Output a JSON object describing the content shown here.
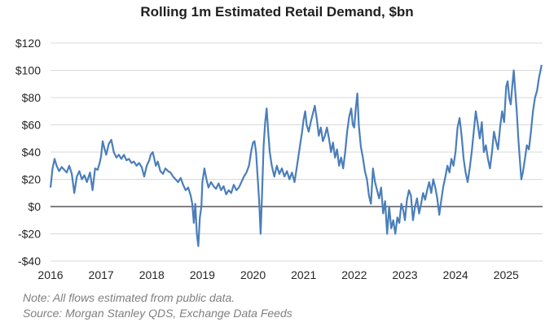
{
  "chart_data": {
    "type": "line",
    "title": "Rolling 1m Estimated Retail Demand, $bn",
    "xlabel": "",
    "ylabel": "",
    "ylim": [
      -40,
      120
    ],
    "xlim": [
      2016,
      2025.72
    ],
    "grid": "horizontal",
    "legend": "none",
    "y_ticks": [
      -40,
      -20,
      0,
      20,
      40,
      60,
      80,
      100,
      120
    ],
    "y_tick_labels": [
      "-$40",
      "-$20",
      "$0",
      "$20",
      "$40",
      "$60",
      "$80",
      "$100",
      "$120"
    ],
    "x_ticks": [
      2016,
      2017,
      2018,
      2019,
      2020,
      2021,
      2022,
      2023,
      2024,
      2025
    ],
    "x_tick_labels": [
      "2016",
      "2017",
      "2018",
      "2019",
      "2020",
      "2021",
      "2022",
      "2023",
      "2024",
      "2025"
    ],
    "series": [
      {
        "color": "#4a7ebb",
        "points": [
          [
            2016.0,
            14
          ],
          [
            2016.04,
            28
          ],
          [
            2016.08,
            35
          ],
          [
            2016.12,
            30
          ],
          [
            2016.17,
            26
          ],
          [
            2016.22,
            29
          ],
          [
            2016.27,
            27
          ],
          [
            2016.32,
            25
          ],
          [
            2016.37,
            30
          ],
          [
            2016.42,
            24
          ],
          [
            2016.47,
            10
          ],
          [
            2016.52,
            22
          ],
          [
            2016.57,
            26
          ],
          [
            2016.62,
            20
          ],
          [
            2016.67,
            23
          ],
          [
            2016.72,
            18
          ],
          [
            2016.78,
            25
          ],
          [
            2016.83,
            12
          ],
          [
            2016.88,
            28
          ],
          [
            2016.93,
            27
          ],
          [
            2016.97,
            32
          ],
          [
            2017.0,
            37
          ],
          [
            2017.03,
            48
          ],
          [
            2017.07,
            42
          ],
          [
            2017.1,
            38
          ],
          [
            2017.15,
            46
          ],
          [
            2017.2,
            49
          ],
          [
            2017.25,
            40
          ],
          [
            2017.3,
            36
          ],
          [
            2017.35,
            38
          ],
          [
            2017.4,
            35
          ],
          [
            2017.45,
            38
          ],
          [
            2017.5,
            34
          ],
          [
            2017.55,
            35
          ],
          [
            2017.6,
            32
          ],
          [
            2017.65,
            33
          ],
          [
            2017.7,
            30
          ],
          [
            2017.75,
            32
          ],
          [
            2017.8,
            29
          ],
          [
            2017.85,
            22
          ],
          [
            2017.9,
            30
          ],
          [
            2017.95,
            34
          ],
          [
            2017.98,
            38
          ],
          [
            2018.02,
            40
          ],
          [
            2018.05,
            35
          ],
          [
            2018.08,
            30
          ],
          [
            2018.12,
            33
          ],
          [
            2018.17,
            26
          ],
          [
            2018.22,
            24
          ],
          [
            2018.27,
            28
          ],
          [
            2018.32,
            26
          ],
          [
            2018.37,
            25
          ],
          [
            2018.42,
            22
          ],
          [
            2018.47,
            20
          ],
          [
            2018.52,
            18
          ],
          [
            2018.57,
            21
          ],
          [
            2018.62,
            16
          ],
          [
            2018.67,
            12
          ],
          [
            2018.72,
            14
          ],
          [
            2018.77,
            8
          ],
          [
            2018.8,
            2
          ],
          [
            2018.83,
            -12
          ],
          [
            2018.86,
            2
          ],
          [
            2018.89,
            -20
          ],
          [
            2018.92,
            -29
          ],
          [
            2018.95,
            -8
          ],
          [
            2018.98,
            0
          ],
          [
            2019.0,
            18
          ],
          [
            2019.04,
            28
          ],
          [
            2019.08,
            20
          ],
          [
            2019.12,
            14
          ],
          [
            2019.17,
            18
          ],
          [
            2019.22,
            15
          ],
          [
            2019.27,
            13
          ],
          [
            2019.32,
            17
          ],
          [
            2019.37,
            12
          ],
          [
            2019.42,
            15
          ],
          [
            2019.47,
            9
          ],
          [
            2019.52,
            12
          ],
          [
            2019.57,
            10
          ],
          [
            2019.62,
            16
          ],
          [
            2019.67,
            12
          ],
          [
            2019.72,
            14
          ],
          [
            2019.77,
            18
          ],
          [
            2019.82,
            22
          ],
          [
            2019.87,
            25
          ],
          [
            2019.92,
            30
          ],
          [
            2019.97,
            42
          ],
          [
            2020.0,
            47
          ],
          [
            2020.03,
            48
          ],
          [
            2020.06,
            40
          ],
          [
            2020.09,
            22
          ],
          [
            2020.12,
            5
          ],
          [
            2020.15,
            -20
          ],
          [
            2020.18,
            10
          ],
          [
            2020.21,
            45
          ],
          [
            2020.24,
            62
          ],
          [
            2020.27,
            72
          ],
          [
            2020.3,
            55
          ],
          [
            2020.33,
            40
          ],
          [
            2020.37,
            30
          ],
          [
            2020.42,
            22
          ],
          [
            2020.47,
            30
          ],
          [
            2020.52,
            24
          ],
          [
            2020.57,
            28
          ],
          [
            2020.62,
            22
          ],
          [
            2020.67,
            26
          ],
          [
            2020.72,
            20
          ],
          [
            2020.77,
            25
          ],
          [
            2020.82,
            18
          ],
          [
            2020.87,
            30
          ],
          [
            2020.93,
            45
          ],
          [
            2020.97,
            55
          ],
          [
            2021.0,
            64
          ],
          [
            2021.03,
            70
          ],
          [
            2021.06,
            60
          ],
          [
            2021.1,
            55
          ],
          [
            2021.14,
            62
          ],
          [
            2021.18,
            68
          ],
          [
            2021.22,
            74
          ],
          [
            2021.26,
            64
          ],
          [
            2021.3,
            52
          ],
          [
            2021.34,
            58
          ],
          [
            2021.38,
            48
          ],
          [
            2021.42,
            52
          ],
          [
            2021.46,
            58
          ],
          [
            2021.5,
            50
          ],
          [
            2021.54,
            40
          ],
          [
            2021.58,
            47
          ],
          [
            2021.62,
            36
          ],
          [
            2021.66,
            42
          ],
          [
            2021.7,
            30
          ],
          [
            2021.74,
            36
          ],
          [
            2021.78,
            28
          ],
          [
            2021.82,
            40
          ],
          [
            2021.86,
            55
          ],
          [
            2021.9,
            66
          ],
          [
            2021.94,
            72
          ],
          [
            2021.97,
            60
          ],
          [
            2022.0,
            58
          ],
          [
            2022.03,
            72
          ],
          [
            2022.06,
            83
          ],
          [
            2022.09,
            60
          ],
          [
            2022.13,
            44
          ],
          [
            2022.17,
            36
          ],
          [
            2022.21,
            26
          ],
          [
            2022.25,
            20
          ],
          [
            2022.29,
            8
          ],
          [
            2022.33,
            2
          ],
          [
            2022.37,
            28
          ],
          [
            2022.41,
            18
          ],
          [
            2022.45,
            12
          ],
          [
            2022.49,
            6
          ],
          [
            2022.53,
            14
          ],
          [
            2022.57,
            -5
          ],
          [
            2022.61,
            4
          ],
          [
            2022.65,
            -20
          ],
          [
            2022.69,
            0
          ],
          [
            2022.73,
            -16
          ],
          [
            2022.77,
            -10
          ],
          [
            2022.81,
            -20
          ],
          [
            2022.85,
            -8
          ],
          [
            2022.89,
            -12
          ],
          [
            2022.93,
            2
          ],
          [
            2022.97,
            -3
          ],
          [
            2023.0,
            -10
          ],
          [
            2023.04,
            5
          ],
          [
            2023.08,
            12
          ],
          [
            2023.12,
            8
          ],
          [
            2023.16,
            -10
          ],
          [
            2023.2,
            0
          ],
          [
            2023.24,
            6
          ],
          [
            2023.28,
            -5
          ],
          [
            2023.32,
            2
          ],
          [
            2023.36,
            10
          ],
          [
            2023.4,
            5
          ],
          [
            2023.44,
            12
          ],
          [
            2023.48,
            18
          ],
          [
            2023.52,
            10
          ],
          [
            2023.56,
            20
          ],
          [
            2023.6,
            14
          ],
          [
            2023.64,
            6
          ],
          [
            2023.68,
            -6
          ],
          [
            2023.72,
            5
          ],
          [
            2023.76,
            15
          ],
          [
            2023.8,
            22
          ],
          [
            2023.84,
            30
          ],
          [
            2023.88,
            25
          ],
          [
            2023.92,
            35
          ],
          [
            2023.96,
            30
          ],
          [
            2024.0,
            40
          ],
          [
            2024.04,
            58
          ],
          [
            2024.08,
            65
          ],
          [
            2024.12,
            52
          ],
          [
            2024.16,
            35
          ],
          [
            2024.2,
            25
          ],
          [
            2024.24,
            18
          ],
          [
            2024.28,
            28
          ],
          [
            2024.32,
            40
          ],
          [
            2024.36,
            55
          ],
          [
            2024.4,
            70
          ],
          [
            2024.44,
            60
          ],
          [
            2024.48,
            50
          ],
          [
            2024.52,
            62
          ],
          [
            2024.56,
            40
          ],
          [
            2024.6,
            45
          ],
          [
            2024.64,
            35
          ],
          [
            2024.68,
            28
          ],
          [
            2024.72,
            40
          ],
          [
            2024.76,
            55
          ],
          [
            2024.8,
            48
          ],
          [
            2024.84,
            42
          ],
          [
            2024.88,
            58
          ],
          [
            2024.92,
            70
          ],
          [
            2024.96,
            62
          ],
          [
            2025.0,
            88
          ],
          [
            2025.03,
            92
          ],
          [
            2025.06,
            80
          ],
          [
            2025.09,
            75
          ],
          [
            2025.12,
            88
          ],
          [
            2025.15,
            100
          ],
          [
            2025.18,
            85
          ],
          [
            2025.21,
            70
          ],
          [
            2025.24,
            50
          ],
          [
            2025.27,
            35
          ],
          [
            2025.3,
            20
          ],
          [
            2025.33,
            25
          ],
          [
            2025.37,
            35
          ],
          [
            2025.41,
            45
          ],
          [
            2025.45,
            42
          ],
          [
            2025.49,
            55
          ],
          [
            2025.53,
            70
          ],
          [
            2025.57,
            80
          ],
          [
            2025.61,
            85
          ],
          [
            2025.65,
            95
          ],
          [
            2025.68,
            100
          ],
          [
            2025.7,
            104
          ]
        ]
      }
    ],
    "notes": [
      "Note:  All flows estimated from public data.",
      "Source: Morgan Stanley QDS, Exchange Data Feeds"
    ]
  }
}
